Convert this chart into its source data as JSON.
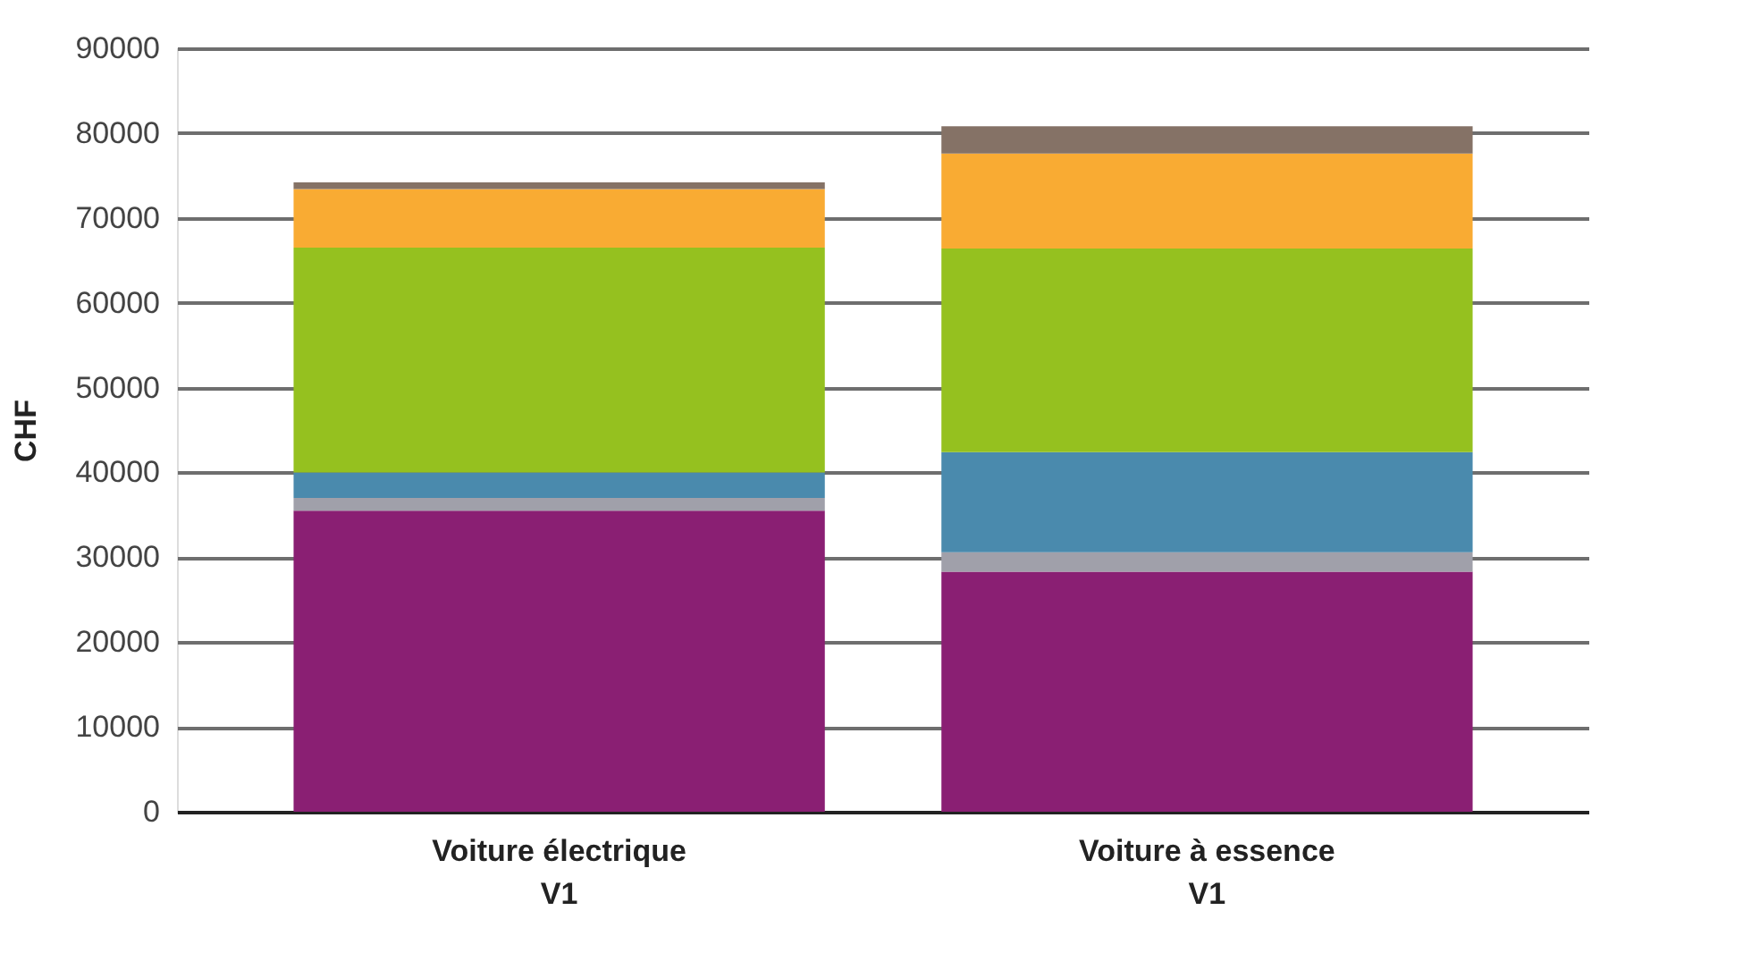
{
  "chart_data": {
    "type": "bar",
    "stacked": true,
    "ylabel": "CHF",
    "categories": [
      "Voiture électrique\nV1",
      "Voiture à essence\nV1"
    ],
    "series": [
      {
        "color": "#8a1f73",
        "values": [
          35500,
          28300
        ]
      },
      {
        "color": "#a0a0aa",
        "values": [
          1500,
          2300
        ]
      },
      {
        "color": "#4a8aad",
        "values": [
          3000,
          11800
        ]
      },
      {
        "color": "#95c11f",
        "values": [
          26500,
          24000
        ]
      },
      {
        "color": "#f9ab33",
        "values": [
          6900,
          11200
        ]
      },
      {
        "color": "#857266",
        "values": [
          800,
          3200
        ]
      }
    ],
    "ylim": [
      0,
      90000
    ],
    "yticks": [
      0,
      10000,
      20000,
      30000,
      40000,
      50000,
      60000,
      70000,
      80000,
      90000
    ],
    "grid": "y",
    "legend": false
  }
}
